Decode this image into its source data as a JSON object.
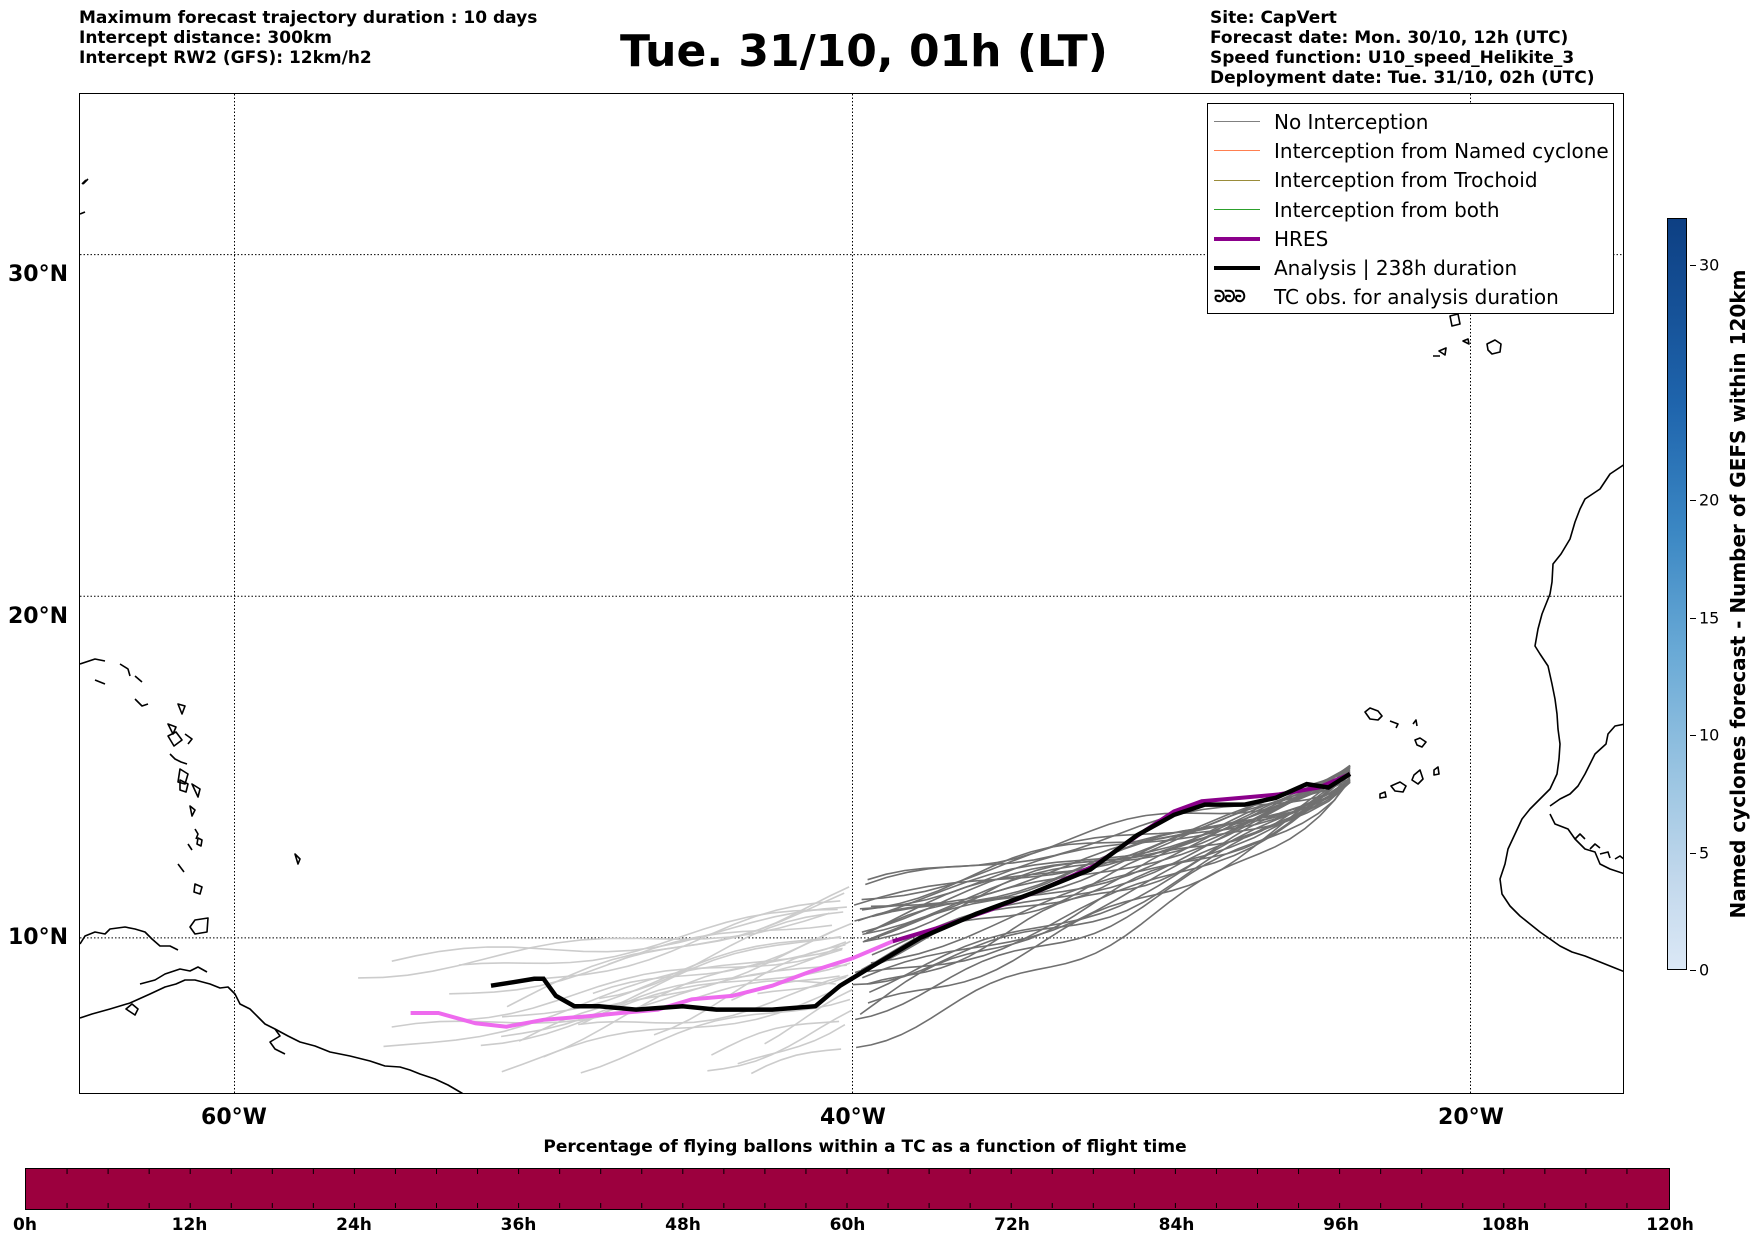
{
  "header": {
    "left_lines": [
      "Maximum forecast trajectory duration : 10 days",
      "Intercept distance: 300km",
      "Intercept RW2 (GFS):  12km/h2"
    ],
    "title": "Tue. 31/10, 01h (LT)",
    "right_lines": [
      "Site: CapVert",
      "Forecast date: Mon. 30/10, 12h (UTC)",
      "Speed function: U10_speed_Helikite_3",
      "Deployment date: Tue. 31/10, 02h (UTC)"
    ]
  },
  "map": {
    "lon_range": [
      -65,
      -15
    ],
    "lat_range": [
      5.4,
      34.7
    ],
    "lat_gridlines": [
      10,
      20,
      30
    ],
    "lon_gridlines": [
      -60,
      -40,
      -20
    ],
    "lat_labels": [
      "10°N",
      "20°N",
      "30°N"
    ],
    "lon_labels": [
      "60°W",
      "40°W",
      "20°W"
    ],
    "coastline_color": "#000000",
    "gridline_style": "dotted"
  },
  "legend": {
    "items": [
      {
        "label": "No Interception",
        "color": "#808080",
        "style": "thin-line",
        "icon": "gray-line-swatch"
      },
      {
        "label": "Interception from Named cyclone",
        "color": "#ff7f50",
        "style": "thin-line",
        "icon": "orange-line-swatch"
      },
      {
        "label": "Interception from Trochoid",
        "color": "#9a8c3a",
        "style": "thin-line",
        "icon": "olive-line-swatch"
      },
      {
        "label": "Interception from both",
        "color": "#2ca02c",
        "style": "thin-line",
        "icon": "green-line-swatch"
      },
      {
        "label": "HRES",
        "color": "#8b008b",
        "style": "thick-line",
        "icon": "purple-line-swatch"
      },
      {
        "label": "Analysis | 238h duration",
        "color": "#000000",
        "style": "thick-line",
        "icon": "black-line-swatch"
      },
      {
        "label": "TC obs. for analysis duration",
        "color": "#000000",
        "style": "tc-symbol",
        "icon": "tc-symbol-icon"
      }
    ],
    "tc_symbol": "ᘒᘒᘒ"
  },
  "chart_data": {
    "type": "line",
    "title": "Tue. 31/10, 01h (LT)",
    "xlabel": "",
    "ylabel": "",
    "xlim": [
      -65,
      -15
    ],
    "ylim": [
      5.4,
      34.7
    ],
    "series": [
      {
        "name": "Analysis | 238h duration",
        "color": "#000000",
        "points": [
          [
            -23.9,
            14.8
          ],
          [
            -24.6,
            14.4
          ],
          [
            -25.3,
            14.5
          ],
          [
            -26.3,
            14.1
          ],
          [
            -27.3,
            13.9
          ],
          [
            -28.6,
            13.9
          ],
          [
            -29.6,
            13.6
          ],
          [
            -30.8,
            13.0
          ],
          [
            -32.3,
            12.0
          ],
          [
            -34.2,
            11.3
          ],
          [
            -36.0,
            10.7
          ],
          [
            -37.8,
            10.0
          ],
          [
            -39.3,
            9.2
          ],
          [
            -40.4,
            8.6
          ],
          [
            -41.2,
            8.0
          ],
          [
            -42.6,
            7.9
          ],
          [
            -44.4,
            7.9
          ],
          [
            -45.5,
            8.0
          ],
          [
            -47.0,
            7.9
          ],
          [
            -48.2,
            8.0
          ],
          [
            -49.0,
            8.0
          ],
          [
            -49.6,
            8.3
          ],
          [
            -50.0,
            8.8
          ],
          [
            -50.3,
            8.8
          ],
          [
            -51.0,
            8.7
          ],
          [
            -51.7,
            8.6
          ]
        ]
      },
      {
        "name": "HRES",
        "color": "#8b008b",
        "points": [
          [
            -23.9,
            14.8
          ],
          [
            -24.9,
            14.4
          ],
          [
            -26.2,
            14.2
          ],
          [
            -27.4,
            14.1
          ],
          [
            -28.7,
            14.0
          ],
          [
            -29.6,
            13.7
          ],
          [
            -30.6,
            13.1
          ],
          [
            -32.2,
            12.1
          ],
          [
            -33.9,
            11.4
          ],
          [
            -35.6,
            10.8
          ],
          [
            -37.2,
            10.3
          ],
          [
            -38.7,
            9.9
          ]
        ],
        "tail_color": "#ee6aee",
        "tail_points": [
          [
            -38.7,
            9.9
          ],
          [
            -40.0,
            9.4
          ],
          [
            -41.4,
            9.0
          ],
          [
            -42.6,
            8.6
          ],
          [
            -43.9,
            8.3
          ],
          [
            -45.2,
            8.2
          ],
          [
            -46.3,
            7.9
          ],
          [
            -47.5,
            7.8
          ],
          [
            -48.6,
            7.7
          ],
          [
            -50.0,
            7.6
          ],
          [
            -51.2,
            7.4
          ],
          [
            -52.2,
            7.5
          ],
          [
            -53.4,
            7.8
          ],
          [
            -54.3,
            7.8
          ]
        ]
      }
    ],
    "ensemble_count": 30,
    "ensemble_color_near": "#707070",
    "ensemble_color_far": "#cccccc"
  },
  "right_colorbar": {
    "title": "Named cyclones forecast - Number of GEFS within 120km",
    "ticks": [
      0,
      5,
      10,
      15,
      20,
      30
    ],
    "range": [
      0,
      32
    ]
  },
  "bottom_colorbar": {
    "title": "Percentage of flying ballons within a TC as a function of flight time",
    "color": "#9c003e",
    "labels": [
      "0h",
      "12h",
      "24h",
      "36h",
      "48h",
      "60h",
      "72h",
      "84h",
      "96h",
      "108h",
      "120h"
    ],
    "minor_ticks": 40
  }
}
